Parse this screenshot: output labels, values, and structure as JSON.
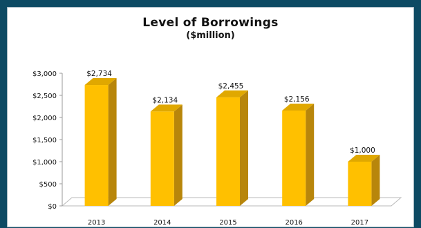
{
  "chart_data": {
    "type": "bar",
    "title": "Level of Borrowings",
    "subtitle": "($million)",
    "categories": [
      "2013",
      "2014",
      "2015",
      "2016",
      "2017"
    ],
    "values": [
      2734,
      2134,
      2455,
      2156,
      1000
    ],
    "data_labels": [
      "$2,734",
      "$2,134",
      "$2,455",
      "$2,156",
      "$1,000"
    ],
    "yticks": [
      0,
      500,
      1000,
      1500,
      2000,
      2500,
      3000
    ],
    "ytick_labels": [
      "$0",
      "$500",
      "$1,000",
      "$1,500",
      "$2,000",
      "$2,500",
      "$3,000"
    ],
    "ylim": [
      0,
      3000
    ],
    "xlabel": "",
    "ylabel": "",
    "grid": false,
    "legend": false,
    "style": "3d-column"
  },
  "colors": {
    "background": "#0d4a63",
    "bar_front": "#ffc000",
    "bar_side": "#b8860b",
    "bar_top": "#e0a800",
    "floor": "#ffffff"
  }
}
